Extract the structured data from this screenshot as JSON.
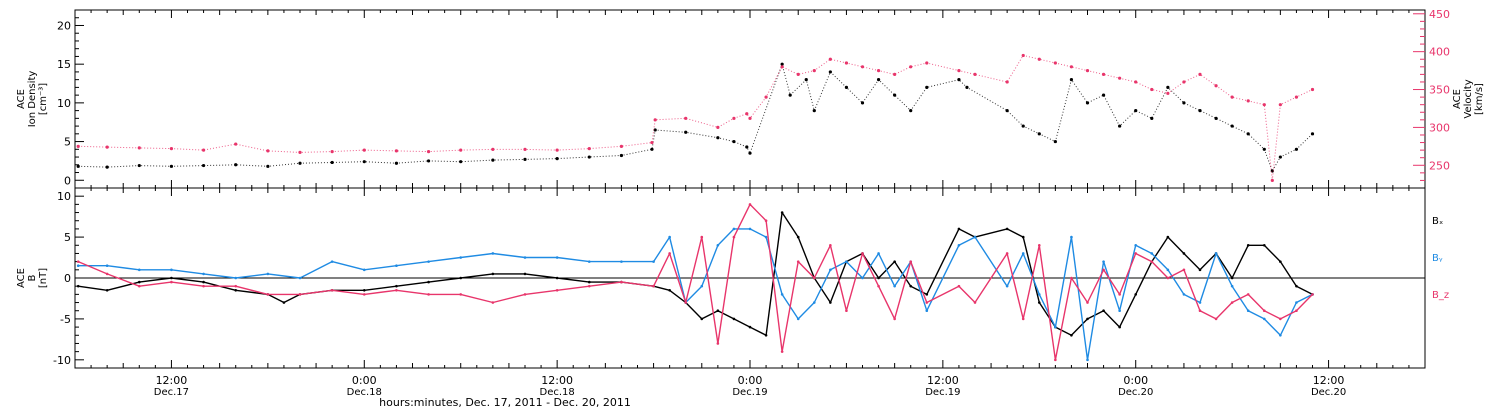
{
  "colors": {
    "black": "#000000",
    "pink": "#e8356b",
    "blue": "#1f8be3",
    "axis": "#000000"
  },
  "x_axis": {
    "label": "hours:minutes, Dec. 17, 2011 - Dec. 20, 2011",
    "range_hours": [
      6,
      90
    ],
    "ticks": [
      {
        "hour": 12,
        "time": "12:00",
        "date": "Dec.17"
      },
      {
        "hour": 24,
        "time": "0:00",
        "date": "Dec.18"
      },
      {
        "hour": 36,
        "time": "12:00",
        "date": "Dec.18"
      },
      {
        "hour": 48,
        "time": "0:00",
        "date": "Dec.19"
      },
      {
        "hour": 60,
        "time": "12:00",
        "date": "Dec.19"
      },
      {
        "hour": 72,
        "time": "0:00",
        "date": "Dec.20"
      },
      {
        "hour": 84,
        "time": "12:00",
        "date": "Dec.20"
      }
    ]
  },
  "chart_data": [
    {
      "type": "scatter",
      "title": "",
      "ylabel_left": [
        "ACE",
        "Ion Density",
        "[cm⁻³]"
      ],
      "ylabel_right": [
        "ACE",
        "Velocity",
        "[km/s]"
      ],
      "ylim_left": [
        -1,
        22
      ],
      "yticks_left": [
        0,
        5,
        10,
        15,
        20
      ],
      "ylim_right": [
        220,
        455
      ],
      "yticks_right": [
        250,
        300,
        350,
        400,
        450
      ],
      "series": [
        {
          "axis": "left",
          "color": "#000000",
          "x": [
            6.2,
            8,
            10,
            12,
            14,
            16,
            18,
            20,
            22,
            24,
            26,
            28,
            30,
            32,
            34,
            36,
            38,
            40,
            41.9,
            42.1,
            44,
            46,
            47,
            47.8,
            48,
            50,
            50.5,
            51.5,
            52,
            53,
            54,
            55,
            56,
            57,
            58,
            59,
            61,
            61.5,
            64,
            65,
            66,
            67,
            68,
            69,
            70,
            71,
            72,
            73,
            74,
            75,
            76,
            77,
            78,
            79,
            80,
            80.5,
            81,
            82,
            83
          ],
          "y": [
            1.8,
            1.7,
            1.9,
            1.8,
            1.9,
            2.0,
            1.8,
            2.2,
            2.3,
            2.4,
            2.2,
            2.5,
            2.4,
            2.6,
            2.7,
            2.8,
            3.0,
            3.2,
            4.0,
            6.5,
            6.2,
            5.5,
            5.0,
            4.3,
            3.5,
            15,
            11,
            13,
            9,
            14,
            12,
            10,
            13,
            11,
            9,
            12,
            13,
            12,
            9,
            7,
            6,
            5,
            13,
            10,
            11,
            7,
            9,
            8,
            12,
            10,
            9,
            8,
            7,
            6,
            4,
            1.2,
            3,
            4,
            6
          ]
        },
        {
          "axis": "right",
          "color": "#e8356b",
          "x": [
            6.2,
            8,
            10,
            12,
            14,
            16,
            18,
            20,
            22,
            24,
            26,
            28,
            30,
            32,
            34,
            36,
            38,
            40,
            41.9,
            42.1,
            44,
            46,
            47,
            47.8,
            48,
            49,
            50,
            51,
            52,
            53,
            54,
            55,
            56,
            57,
            58,
            59,
            61,
            62,
            64,
            65,
            66,
            67,
            68,
            69,
            70,
            71,
            72,
            73,
            74,
            75,
            76,
            77,
            78,
            79,
            80,
            80.5,
            81,
            82,
            83
          ],
          "y": [
            275,
            274,
            273,
            272,
            270,
            278,
            269,
            267,
            268,
            270,
            269,
            268,
            270,
            271,
            271,
            270,
            272,
            275,
            280,
            310,
            312,
            300,
            312,
            318,
            312,
            340,
            380,
            370,
            375,
            390,
            385,
            380,
            375,
            370,
            380,
            385,
            375,
            370,
            360,
            395,
            390,
            385,
            380,
            375,
            370,
            365,
            360,
            350,
            345,
            360,
            370,
            355,
            340,
            335,
            330,
            230,
            330,
            340,
            350
          ]
        }
      ]
    },
    {
      "type": "line",
      "title": "",
      "ylabel_left": [
        "ACE",
        "B",
        "[nT]"
      ],
      "ylim": [
        -11,
        11
      ],
      "yticks": [
        -10,
        -5,
        0,
        5,
        10
      ],
      "zero_line": true,
      "legend": {
        "position": "right",
        "items": [
          {
            "name": "Bₓ",
            "color": "#000000"
          },
          {
            "name": "Bᵧ",
            "color": "#1f8be3"
          },
          {
            "name": "B_z",
            "color": "#e8356b"
          }
        ]
      },
      "series": [
        {
          "name": "Bₓ",
          "color": "#000000",
          "x": [
            6.2,
            8,
            10,
            12,
            14,
            16,
            18,
            19,
            20,
            22,
            24,
            26,
            28,
            30,
            32,
            34,
            36,
            38,
            40,
            42,
            43,
            44,
            45,
            46,
            47,
            48,
            49,
            50,
            51,
            52,
            53,
            54,
            55,
            56,
            57,
            58,
            59,
            61,
            62,
            64,
            65,
            66,
            67,
            68,
            69,
            70,
            71,
            72,
            73,
            74,
            75,
            76,
            77,
            78,
            79,
            80,
            81,
            82,
            83
          ],
          "y": [
            -1.0,
            -1.5,
            -0.5,
            0.0,
            -0.5,
            -1.5,
            -2.0,
            -3.0,
            -2.0,
            -1.5,
            -1.5,
            -1.0,
            -0.5,
            0.0,
            0.5,
            0.5,
            0.0,
            -0.5,
            -0.5,
            -1.0,
            -1.5,
            -3,
            -5,
            -4,
            -5,
            -6,
            -7,
            8,
            5,
            0,
            -3,
            2,
            3,
            0,
            2,
            -1,
            -2,
            6,
            5,
            6,
            5,
            -3,
            -6,
            -7,
            -5,
            -4,
            -6,
            -2,
            2,
            5,
            3,
            1,
            3,
            0,
            4,
            4,
            2,
            -1,
            -2
          ]
        },
        {
          "name": "Bᵧ",
          "color": "#1f8be3",
          "x": [
            6.2,
            8,
            10,
            12,
            14,
            16,
            18,
            20,
            22,
            24,
            26,
            28,
            30,
            32,
            34,
            36,
            38,
            40,
            42,
            43,
            44,
            45,
            46,
            47,
            48,
            49,
            50,
            51,
            52,
            53,
            54,
            55,
            56,
            57,
            58,
            59,
            61,
            62,
            64,
            65,
            66,
            67,
            68,
            69,
            70,
            71,
            72,
            73,
            74,
            75,
            76,
            77,
            78,
            79,
            80,
            81,
            82,
            83
          ],
          "y": [
            1.5,
            1.5,
            1.0,
            1.0,
            0.5,
            0.0,
            0.5,
            0.0,
            2.0,
            1.0,
            1.5,
            2.0,
            2.5,
            3.0,
            2.5,
            2.5,
            2.0,
            2.0,
            2.0,
            5,
            -3,
            -1,
            4,
            6,
            6,
            5,
            -2,
            -5,
            -3,
            1,
            2,
            0,
            3,
            -1,
            2,
            -4,
            4,
            5,
            -1,
            3,
            -2,
            -6,
            5,
            -10,
            2,
            -4,
            4,
            3,
            1,
            -2,
            -3,
            3,
            -1,
            -4,
            -5,
            -7,
            -3,
            -2
          ]
        },
        {
          "name": "B_z",
          "color": "#e8356b",
          "x": [
            6.2,
            8,
            10,
            12,
            14,
            16,
            18,
            20,
            22,
            24,
            26,
            28,
            30,
            32,
            34,
            36,
            38,
            40,
            42,
            43,
            44,
            45,
            46,
            47,
            48,
            49,
            50,
            51,
            52,
            53,
            54,
            55,
            56,
            57,
            58,
            59,
            61,
            62,
            64,
            65,
            66,
            67,
            68,
            69,
            70,
            71,
            72,
            73,
            74,
            75,
            76,
            77,
            78,
            79,
            80,
            81,
            82,
            83
          ],
          "y": [
            2.0,
            0.5,
            -1.0,
            -0.5,
            -1.0,
            -1.0,
            -2.0,
            -2.0,
            -1.5,
            -2.0,
            -1.5,
            -2.0,
            -2.0,
            -3.0,
            -2.0,
            -1.5,
            -1.0,
            -0.5,
            -1.0,
            3,
            -3,
            5,
            -8,
            5,
            9,
            7,
            -9,
            2,
            0,
            4,
            -4,
            3,
            -1,
            -5,
            2,
            -3,
            -1,
            -3,
            3,
            -5,
            4,
            -10,
            0,
            -3,
            1,
            -2,
            3,
            2,
            0,
            1,
            -4,
            -5,
            -3,
            -2,
            -4,
            -5,
            -4,
            -2
          ]
        }
      ]
    }
  ]
}
